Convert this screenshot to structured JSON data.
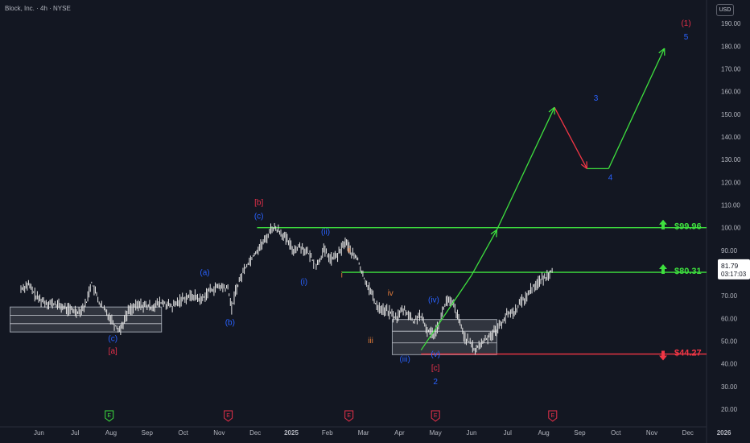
{
  "header": {
    "symbol": "Block, Inc. · 4h · NYSE",
    "currency": "USD"
  },
  "price_tag": {
    "price": "81.79",
    "countdown": "03:17:03"
  },
  "colors": {
    "background": "#131722",
    "green": "#3ee03e",
    "red": "#f23645",
    "blue": "#2962ff",
    "orange": "#e07b39",
    "crimson": "#e8304a",
    "candle": "#e6e6e6",
    "box": "#4a4e57"
  },
  "chart_data": {
    "type": "line",
    "title": "Block, Inc. · 4h · NYSE",
    "ylim": [
      15,
      195
    ],
    "y_ticks": [
      20,
      30,
      40,
      50,
      60,
      70,
      80,
      90,
      100,
      110,
      120,
      130,
      140,
      150,
      160,
      170,
      180,
      190
    ],
    "y_tick_labels": [
      "20.00",
      "30.00",
      "40.00",
      "50.00",
      "60.00",
      "70.00",
      "80.00",
      "90.00",
      "100.00",
      "110.00",
      "120.00",
      "130.00",
      "140.00",
      "150.00",
      "160.00",
      "170.00",
      "180.00",
      "190.00"
    ],
    "x_tick_labels": [
      "Jun",
      "Jul",
      "Aug",
      "Sep",
      "Oct",
      "Nov",
      "Dec",
      "2025",
      "Feb",
      "Mar",
      "Apr",
      "May",
      "Jun",
      "Jul",
      "Aug",
      "Sep",
      "Oct",
      "Nov",
      "Dec",
      "2026"
    ],
    "x_tick_pos": [
      0.5,
      1.5,
      2.5,
      3.5,
      4.5,
      5.5,
      6.5,
      7.5,
      8.5,
      9.5,
      10.5,
      11.5,
      12.5,
      13.5,
      14.5,
      15.5,
      16.5,
      17.5,
      18.5,
      19.5
    ],
    "series": [
      {
        "x": [
          0,
          0.2,
          0.45,
          0.7,
          1.0,
          1.3,
          1.6,
          1.8,
          1.95,
          2.2,
          2.5,
          2.6,
          2.75,
          3.0,
          3.3,
          3.6,
          3.9,
          4.2,
          4.5,
          4.8,
          5.0,
          5.2,
          5.5,
          5.75,
          5.85,
          5.95,
          6.2,
          6.5,
          6.8,
          6.95,
          7.15,
          7.4,
          7.55,
          7.75,
          8.0,
          8.2,
          8.4,
          8.6,
          8.8,
          9.0,
          9.2,
          9.35,
          9.45,
          9.7,
          9.85,
          10.0,
          10.2,
          10.4,
          10.6,
          10.75,
          10.9,
          11.05,
          11.25,
          11.45,
          11.6,
          11.8,
          12.0,
          12.3,
          12.6,
          12.9,
          13.2,
          13.5,
          13.7,
          13.85,
          14.0,
          14.15,
          14.35,
          14.55,
          14.75
        ],
        "y": [
          73,
          75,
          69,
          67,
          66,
          64,
          63,
          66,
          76,
          66,
          60,
          57,
          55,
          64,
          66,
          65,
          67,
          65,
          69,
          70,
          68,
          72,
          74,
          73,
          64,
          72,
          82,
          89,
          95,
          100,
          99,
          94,
          90,
          92,
          88,
          83,
          90,
          86,
          88,
          94,
          88,
          86,
          80,
          72,
          66,
          64,
          63,
          60,
          64,
          62,
          58,
          62,
          55,
          53,
          58,
          68,
          66,
          52,
          46,
          51,
          55,
          62,
          63,
          67,
          69,
          73,
          76,
          78,
          82
        ]
      }
    ],
    "hlines": [
      {
        "label": "$99.96",
        "value": 99.96
      },
      {
        "label": "$80.31",
        "value": 80.31
      },
      {
        "label": "$44.27",
        "value": 44.27
      }
    ],
    "boxes": [
      {
        "x0": -0.3,
        "x1": 3.9,
        "y0": 54,
        "y1": 65
      },
      {
        "x0": 10.3,
        "x1": 13.2,
        "y0": 44,
        "y1": 59.5
      }
    ],
    "projection": {
      "x": [
        11.1,
        12.5,
        13.2,
        14.8,
        15.7,
        16.3,
        17.85
      ],
      "y": [
        46,
        79,
        99,
        153,
        126,
        126,
        179
      ]
    },
    "wave_labels": [
      {
        "t": "(c)",
        "x": 2.55,
        "y": 50,
        "c": "blue"
      },
      {
        "t": "[a]",
        "x": 2.55,
        "y": 44.5,
        "c": "crimson"
      },
      {
        "t": "(a)",
        "x": 5.1,
        "y": 79,
        "c": "blue"
      },
      {
        "t": "(b)",
        "x": 5.8,
        "y": 57,
        "c": "blue"
      },
      {
        "t": "[b]",
        "x": 6.6,
        "y": 110,
        "c": "crimson"
      },
      {
        "t": "(c)",
        "x": 6.6,
        "y": 104,
        "c": "blue"
      },
      {
        "t": "(i)",
        "x": 7.85,
        "y": 75,
        "c": "blue"
      },
      {
        "t": "(ii)",
        "x": 8.45,
        "y": 97,
        "c": "blue"
      },
      {
        "t": "ii",
        "x": 9.1,
        "y": 89,
        "c": "orange"
      },
      {
        "t": "i",
        "x": 8.9,
        "y": 78,
        "c": "orange"
      },
      {
        "t": "iii",
        "x": 9.7,
        "y": 49,
        "c": "orange"
      },
      {
        "t": "iv",
        "x": 10.25,
        "y": 70,
        "c": "orange"
      },
      {
        "t": "(iii)",
        "x": 10.65,
        "y": 41,
        "c": "blue"
      },
      {
        "t": "(iv)",
        "x": 11.45,
        "y": 67,
        "c": "blue"
      },
      {
        "t": "(v)",
        "x": 11.5,
        "y": 43,
        "c": "blue"
      },
      {
        "t": "[c]",
        "x": 11.5,
        "y": 37,
        "c": "crimson"
      },
      {
        "t": "2",
        "x": 11.5,
        "y": 31,
        "c": "blue"
      },
      {
        "t": "3",
        "x": 15.95,
        "y": 156,
        "c": "blue"
      },
      {
        "t": "4",
        "x": 16.35,
        "y": 121,
        "c": "blue"
      },
      {
        "t": "(1)",
        "x": 18.45,
        "y": 189,
        "c": "crimson"
      },
      {
        "t": "5",
        "x": 18.45,
        "y": 183,
        "c": "blue"
      }
    ],
    "events": [
      {
        "t": "E",
        "x": 2.45,
        "c": "green"
      },
      {
        "t": "E",
        "x": 5.75,
        "c": "crimson"
      },
      {
        "t": "E",
        "x": 9.1,
        "c": "crimson"
      },
      {
        "t": "E",
        "x": 11.5,
        "c": "crimson"
      },
      {
        "t": "E",
        "x": 14.75,
        "c": "crimson"
      }
    ]
  }
}
